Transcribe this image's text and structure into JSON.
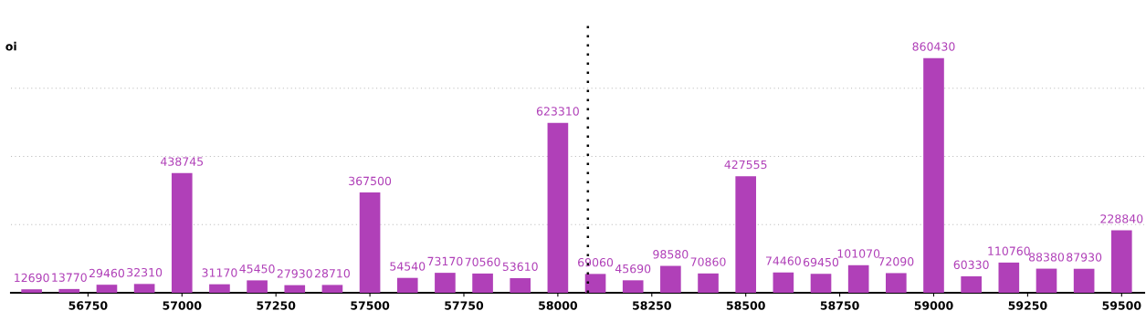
{
  "chart_data": {
    "type": "bar",
    "ylabel": "oi",
    "x": [
      56600,
      56700,
      56800,
      56900,
      57000,
      57100,
      57200,
      57300,
      57400,
      57500,
      57600,
      57700,
      57800,
      57900,
      58000,
      58100,
      58200,
      58300,
      58400,
      58500,
      58600,
      58700,
      58800,
      58900,
      59000,
      59100,
      59200,
      59300,
      59400,
      59500
    ],
    "values": [
      12690,
      13770,
      29460,
      32310,
      438745,
      31170,
      45450,
      27930,
      28710,
      367500,
      54540,
      73170,
      70560,
      53610,
      623310,
      69060,
      45690,
      98580,
      70860,
      427555,
      74460,
      69450,
      101070,
      72090,
      860430,
      60330,
      110760,
      88380,
      87930,
      228840
    ],
    "color": "#b040b8",
    "data_labels": true,
    "xlim": [
      56545,
      59560
    ],
    "xticks": [
      56750,
      57000,
      57250,
      57500,
      57750,
      58000,
      58250,
      58500,
      58750,
      59000,
      59250,
      59500
    ],
    "ylim": [
      0,
      1000000
    ],
    "yticks": [
      {
        "value": 250000,
        "label": null
      },
      {
        "value": 500000,
        "label": null
      },
      {
        "value": 750000,
        "label": null
      }
    ],
    "grid": "y",
    "tick_labels": "x",
    "ref_lines": [
      {
        "axis": "x",
        "value": 58080,
        "color": "#000000",
        "line_style": "dotted"
      }
    ]
  }
}
